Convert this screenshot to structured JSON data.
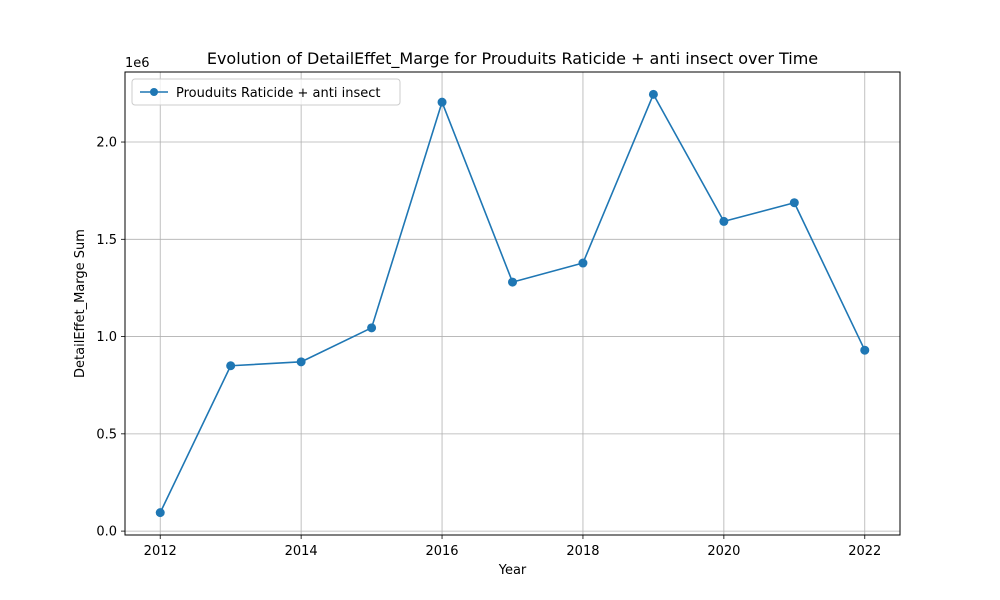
{
  "chart_data": {
    "type": "line",
    "title": "Evolution of DetailEffet_Marge for Prouduits Raticide + anti insect over Time",
    "xlabel": "Year",
    "ylabel": "DetailEffet_Marge Sum",
    "y_offset_label": "1e6",
    "x": [
      2012,
      2013,
      2014,
      2015,
      2016,
      2017,
      2018,
      2019,
      2020,
      2021,
      2022
    ],
    "series": [
      {
        "name": "Prouduits Raticide + anti insect",
        "values": [
          95000,
          850000,
          870000,
          1045000,
          2205000,
          1280000,
          1378000,
          2245000,
          1592000,
          1688000,
          930000
        ],
        "color": "#1f77b4"
      }
    ],
    "xlim": [
      2011.5,
      2022.5
    ],
    "ylim": [
      -20000.0,
      2360000.0
    ],
    "x_ticks": [
      2012,
      2014,
      2016,
      2018,
      2020,
      2022
    ],
    "x_tick_labels": [
      "2012",
      "2014",
      "2016",
      "2018",
      "2020",
      "2022"
    ],
    "y_ticks": [
      0,
      500000,
      1000000,
      1500000,
      2000000
    ],
    "y_tick_labels": [
      "0.0",
      "0.5",
      "1.0",
      "1.5",
      "2.0"
    ],
    "grid": true,
    "legend_position": "upper left"
  }
}
